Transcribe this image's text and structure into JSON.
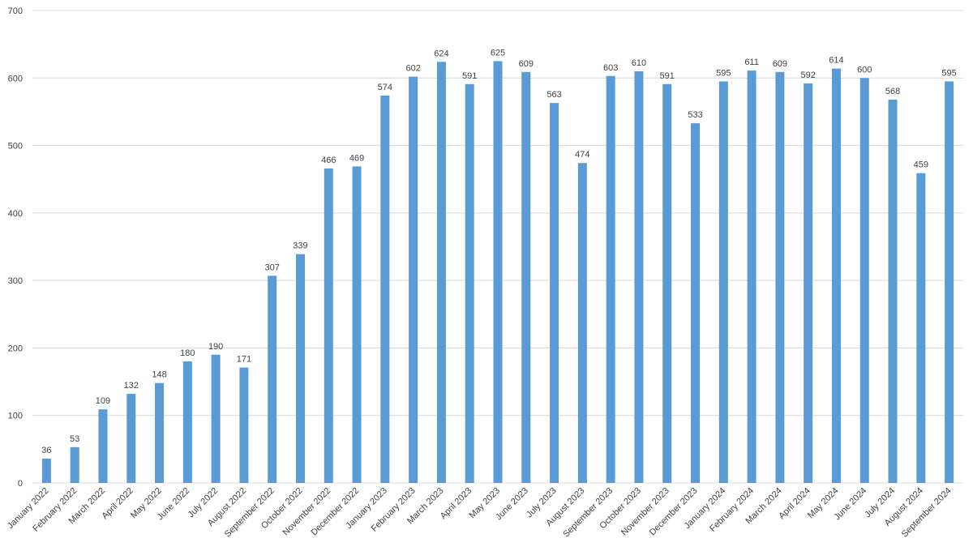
{
  "chart_data": {
    "type": "bar",
    "title": "",
    "xlabel": "",
    "ylabel": "",
    "ylim": [
      0,
      700
    ],
    "yticks": [
      0,
      100,
      200,
      300,
      400,
      500,
      600,
      700
    ],
    "grid": true,
    "legend": "none",
    "colors": {
      "bar": "#5b9bd5",
      "grid": "#d9d9d9",
      "text": "#404040"
    },
    "categories": [
      "January 2022",
      "February 2022",
      "March 2022",
      "April 2022",
      "May 2022",
      "June 2022",
      "July 2022",
      "August 2022",
      "September 2022",
      "October 2022",
      "November 2022",
      "December 2022",
      "January 2023",
      "February 2023",
      "March 2023",
      "April 2023",
      "May 2023",
      "June 2023",
      "July 2023",
      "August 2023",
      "September 2023",
      "October 2023",
      "November 2023",
      "December 2023",
      "January 2024",
      "February 2024",
      "March 2024",
      "April 2024",
      "May 2024",
      "June 2024",
      "July 2024",
      "August 2024",
      "September 2024"
    ],
    "values": [
      36,
      53,
      109,
      132,
      148,
      180,
      190,
      171,
      307,
      339,
      466,
      469,
      574,
      602,
      624,
      591,
      625,
      609,
      563,
      474,
      603,
      610,
      591,
      533,
      595,
      611,
      609,
      592,
      614,
      600,
      568,
      459,
      595
    ]
  }
}
